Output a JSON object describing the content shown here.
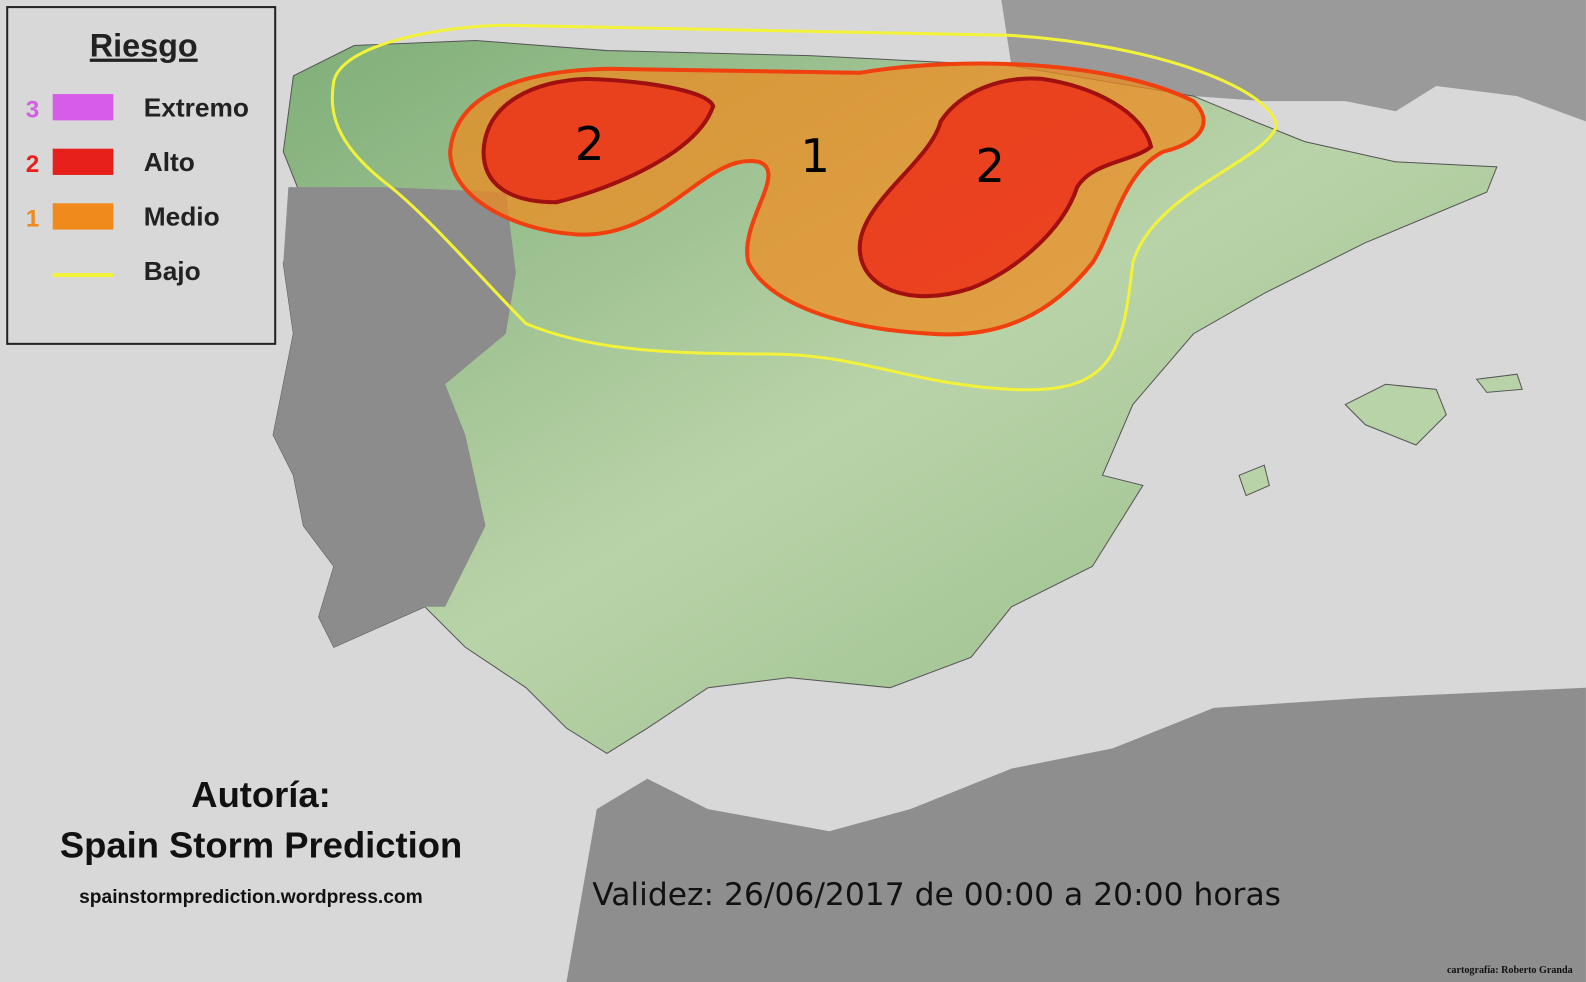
{
  "legend": {
    "title": "Riesgo",
    "items": [
      {
        "level": "3",
        "label": "Extremo",
        "color": "#d75ce8"
      },
      {
        "level": "2",
        "label": "Alto",
        "color": "#e8201c"
      },
      {
        "level": "1",
        "label": "Medio",
        "color": "#f08a1c"
      },
      {
        "label": "Bajo",
        "color": "#f2f23a"
      }
    ]
  },
  "zones": [
    {
      "label": "2"
    },
    {
      "label": "1"
    },
    {
      "label": "2"
    }
  ],
  "credits": {
    "author_heading": "Autoría:",
    "author": "Spain Storm Prediction",
    "website": "spainstormprediction.wordpress.com",
    "cartography": "cartografía: Roberto Granda"
  },
  "validity": "Validez: 26/06/2017 de 00:00 a 20:00 horas"
}
